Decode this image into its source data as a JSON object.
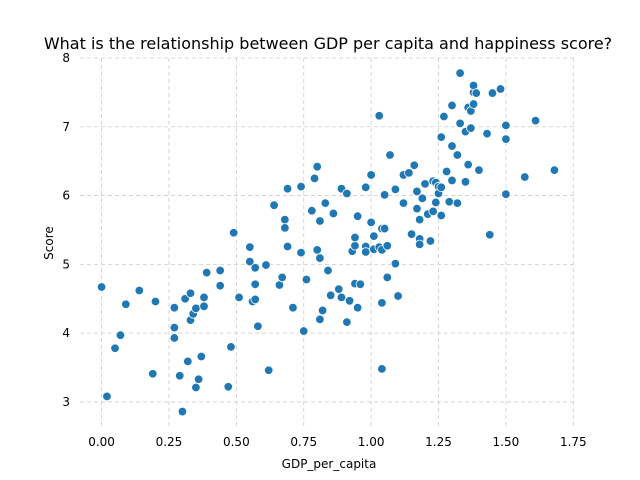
{
  "chart_data": {
    "type": "scatter",
    "title": "What is the relationship between GDP per capita and happiness score?",
    "xlabel": "GDP_per_capita",
    "ylabel": "Score",
    "xlim": [
      -0.08,
      1.76
    ],
    "ylim": [
      2.65,
      8.0
    ],
    "xticks": [
      0.0,
      0.25,
      0.5,
      0.75,
      1.0,
      1.25,
      1.5,
      1.75
    ],
    "xtick_labels": [
      "0.00",
      "0.25",
      "0.50",
      "0.75",
      "1.00",
      "1.25",
      "1.50",
      "1.75"
    ],
    "yticks": [
      3,
      4,
      5,
      6,
      7,
      8
    ],
    "ytick_labels": [
      "3",
      "4",
      "5",
      "6",
      "7",
      "8"
    ],
    "grid": true,
    "color": "#1f77b4",
    "points": [
      [
        0.0,
        4.67
      ],
      [
        0.02,
        3.08
      ],
      [
        0.05,
        3.78
      ],
      [
        0.07,
        3.97
      ],
      [
        0.09,
        4.42
      ],
      [
        0.14,
        4.62
      ],
      [
        0.19,
        3.41
      ],
      [
        0.2,
        4.46
      ],
      [
        0.27,
        4.37
      ],
      [
        0.27,
        4.08
      ],
      [
        0.27,
        3.93
      ],
      [
        0.29,
        3.38
      ],
      [
        0.3,
        2.86
      ],
      [
        0.31,
        4.5
      ],
      [
        0.32,
        3.59
      ],
      [
        0.33,
        4.19
      ],
      [
        0.33,
        4.58
      ],
      [
        0.34,
        4.28
      ],
      [
        0.35,
        3.21
      ],
      [
        0.35,
        4.36
      ],
      [
        0.36,
        3.33
      ],
      [
        0.37,
        3.66
      ],
      [
        0.38,
        4.52
      ],
      [
        0.38,
        4.39
      ],
      [
        0.39,
        4.88
      ],
      [
        0.44,
        4.69
      ],
      [
        0.44,
        4.91
      ],
      [
        0.47,
        3.22
      ],
      [
        0.48,
        3.8
      ],
      [
        0.49,
        5.46
      ],
      [
        0.51,
        4.52
      ],
      [
        0.55,
        5.25
      ],
      [
        0.55,
        5.04
      ],
      [
        0.56,
        4.46
      ],
      [
        0.57,
        4.49
      ],
      [
        0.57,
        4.95
      ],
      [
        0.57,
        4.71
      ],
      [
        0.58,
        4.1
      ],
      [
        0.61,
        4.99
      ],
      [
        0.62,
        3.46
      ],
      [
        0.64,
        5.86
      ],
      [
        0.66,
        4.7
      ],
      [
        0.67,
        4.81
      ],
      [
        0.68,
        5.65
      ],
      [
        0.68,
        5.53
      ],
      [
        0.69,
        6.1
      ],
      [
        0.69,
        5.26
      ],
      [
        0.71,
        4.37
      ],
      [
        0.74,
        5.17
      ],
      [
        0.74,
        6.13
      ],
      [
        0.75,
        4.03
      ],
      [
        0.76,
        4.78
      ],
      [
        0.78,
        5.78
      ],
      [
        0.79,
        6.25
      ],
      [
        0.8,
        6.42
      ],
      [
        0.8,
        5.21
      ],
      [
        0.81,
        5.63
      ],
      [
        0.81,
        5.09
      ],
      [
        0.81,
        4.2
      ],
      [
        0.82,
        4.33
      ],
      [
        0.83,
        5.89
      ],
      [
        0.84,
        4.91
      ],
      [
        0.85,
        4.55
      ],
      [
        0.86,
        5.74
      ],
      [
        0.88,
        4.64
      ],
      [
        0.89,
        6.1
      ],
      [
        0.89,
        4.52
      ],
      [
        0.91,
        6.03
      ],
      [
        0.91,
        4.16
      ],
      [
        0.92,
        4.47
      ],
      [
        0.93,
        5.19
      ],
      [
        0.94,
        5.27
      ],
      [
        0.94,
        5.39
      ],
      [
        0.94,
        4.72
      ],
      [
        0.95,
        4.37
      ],
      [
        0.95,
        5.7
      ],
      [
        0.96,
        4.71
      ],
      [
        0.98,
        5.26
      ],
      [
        0.98,
        5.18
      ],
      [
        0.98,
        6.12
      ],
      [
        1.0,
        5.61
      ],
      [
        1.0,
        6.3
      ],
      [
        1.01,
        5.41
      ],
      [
        1.01,
        5.22
      ],
      [
        1.03,
        5.25
      ],
      [
        1.03,
        7.16
      ],
      [
        1.04,
        3.48
      ],
      [
        1.04,
        5.21
      ],
      [
        1.04,
        4.44
      ],
      [
        1.04,
        5.52
      ],
      [
        1.05,
        6.01
      ],
      [
        1.05,
        5.52
      ],
      [
        1.06,
        4.81
      ],
      [
        1.06,
        5.27
      ],
      [
        1.07,
        6.59
      ],
      [
        1.09,
        6.09
      ],
      [
        1.09,
        5.01
      ],
      [
        1.1,
        4.54
      ],
      [
        1.12,
        5.89
      ],
      [
        1.12,
        6.3
      ],
      [
        1.14,
        6.33
      ],
      [
        1.15,
        5.44
      ],
      [
        1.16,
        6.44
      ],
      [
        1.17,
        6.06
      ],
      [
        1.17,
        5.81
      ],
      [
        1.18,
        5.65
      ],
      [
        1.18,
        5.37
      ],
      [
        1.18,
        5.29
      ],
      [
        1.19,
        5.96
      ],
      [
        1.2,
        6.17
      ],
      [
        1.21,
        5.72
      ],
      [
        1.21,
        5.73
      ],
      [
        1.22,
        5.34
      ],
      [
        1.23,
        5.77
      ],
      [
        1.23,
        6.21
      ],
      [
        1.24,
        5.9
      ],
      [
        1.24,
        6.19
      ],
      [
        1.25,
        6.13
      ],
      [
        1.25,
        6.03
      ],
      [
        1.26,
        5.71
      ],
      [
        1.26,
        6.12
      ],
      [
        1.26,
        6.85
      ],
      [
        1.27,
        7.15
      ],
      [
        1.28,
        6.35
      ],
      [
        1.29,
        5.91
      ],
      [
        1.3,
        6.72
      ],
      [
        1.3,
        6.22
      ],
      [
        1.3,
        7.31
      ],
      [
        1.32,
        6.59
      ],
      [
        1.32,
        5.89
      ],
      [
        1.33,
        7.05
      ],
      [
        1.33,
        7.78
      ],
      [
        1.35,
        6.93
      ],
      [
        1.35,
        6.2
      ],
      [
        1.36,
        7.28
      ],
      [
        1.36,
        6.45
      ],
      [
        1.37,
        6.98
      ],
      [
        1.37,
        7.23
      ],
      [
        1.38,
        7.33
      ],
      [
        1.38,
        7.5
      ],
      [
        1.38,
        7.6
      ],
      [
        1.39,
        7.49
      ],
      [
        1.4,
        6.37
      ],
      [
        1.43,
        6.9
      ],
      [
        1.44,
        5.43
      ],
      [
        1.45,
        7.49
      ],
      [
        1.48,
        7.55
      ],
      [
        1.5,
        6.02
      ],
      [
        1.5,
        7.02
      ],
      [
        1.5,
        6.82
      ],
      [
        1.57,
        6.27
      ],
      [
        1.61,
        7.09
      ],
      [
        1.68,
        6.37
      ]
    ]
  }
}
